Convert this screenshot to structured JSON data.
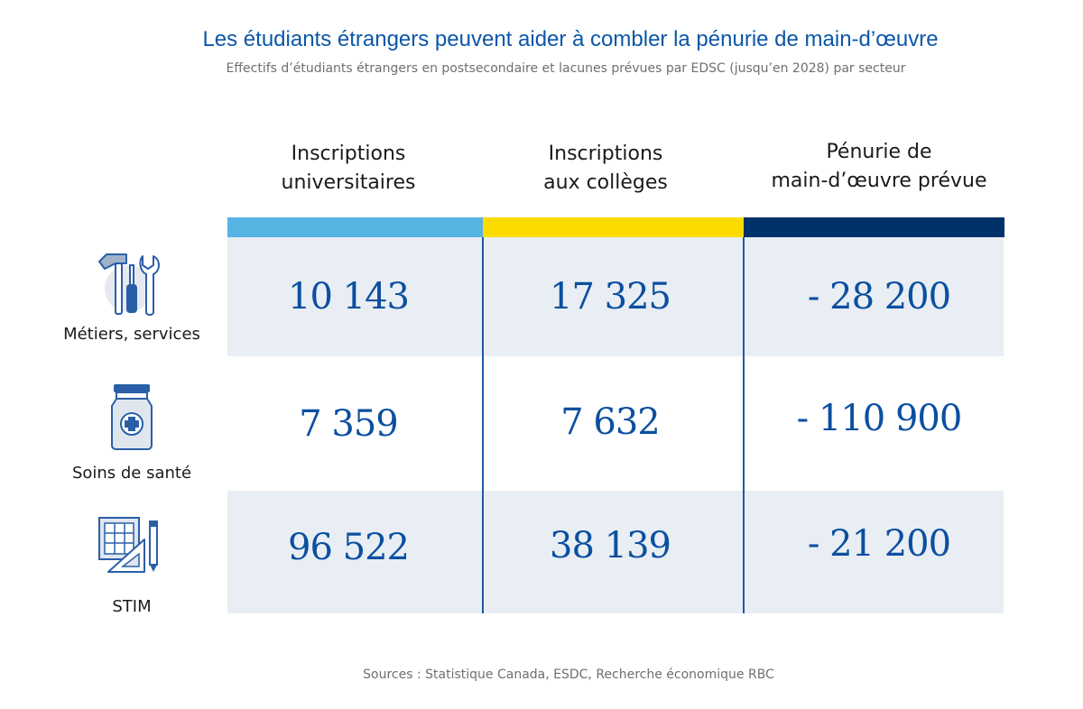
{
  "title": "Les étudiants étrangers peuvent aider à combler la pénurie de main-d’œuvre",
  "subtitle": "Effectifs d’étudiants étrangers en postsecondaire et lacunes prévues par EDSC (jusqu’en 2028) par secteur",
  "source": "Sources : Statistique Canada, ESDC, Recherche économique RBC",
  "colors": {
    "university": "#56b4e2",
    "college": "#fcdb00",
    "shortage": "#003168",
    "row_shade": "#e8eef3",
    "value_text": "#0b4fa0"
  },
  "chart_data": {
    "type": "table",
    "columns": [
      {
        "line1": "Inscriptions",
        "line2": "universitaires"
      },
      {
        "line1": "Inscriptions",
        "line2": "aux collèges"
      },
      {
        "line1": "Pénurie de",
        "line2": "main-d’œuvre prévue"
      }
    ],
    "rows": [
      {
        "label": "Métiers, services",
        "icon": "tools-icon",
        "values": [
          "10 143",
          "17 325",
          "- 28 200"
        ]
      },
      {
        "label": "Soins de santé",
        "icon": "medicine-bottle-icon",
        "values": [
          "7 359",
          "7 632",
          "- 110 900"
        ]
      },
      {
        "label": "STIM",
        "icon": "blueprint-icon",
        "values": [
          "96 522",
          "38 139",
          "- 21 200"
        ]
      }
    ]
  }
}
